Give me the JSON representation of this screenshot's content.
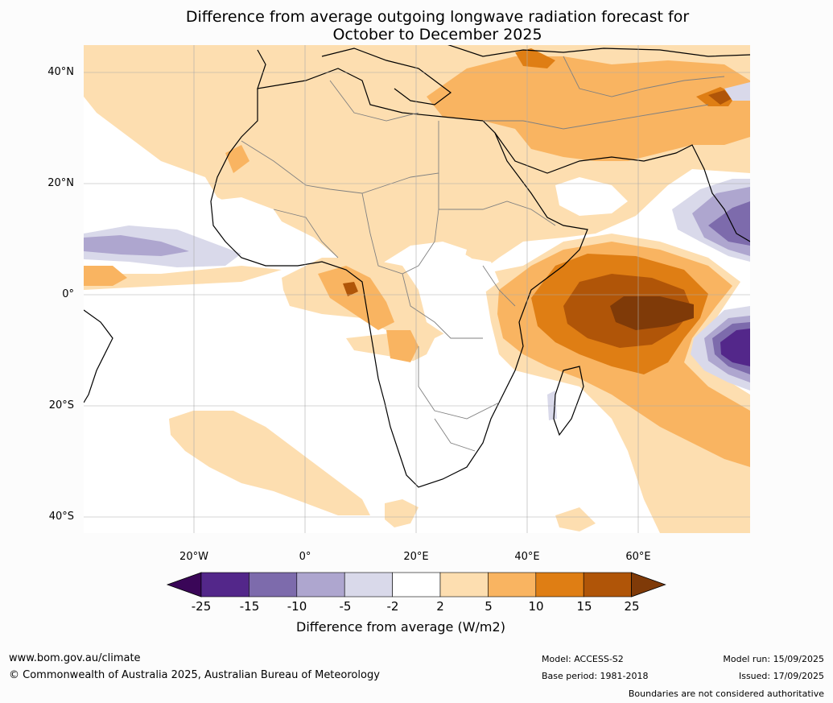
{
  "title": "Difference from average outgoing longwave radiation forecast for\nOctober to December 2025",
  "lat_labels": [
    "40°N",
    "20°N",
    "0°",
    "20°S",
    "40°S"
  ],
  "lon_labels": [
    "20°W",
    "0°",
    "20°E",
    "40°E",
    "60°E"
  ],
  "colorbar": {
    "ticks": [
      "-25",
      "-15",
      "-10",
      "-5",
      "-2",
      "2",
      "5",
      "10",
      "15",
      "25"
    ],
    "label": "Difference from average (W/m2)",
    "colors": {
      "below_-25": "#3a0658",
      "-25_to_-15": "#53278a",
      "-15_to_-10": "#7d6bac",
      "-10_to_-5": "#aea6cf",
      "-5_to_-2": "#d9d9ea",
      "-2_to_2": "#ffffff",
      "2_to_5": "#fddeb0",
      "5_to_10": "#f9b461",
      "10_to_15": "#df7e14",
      "15_to_25": "#b05508",
      "above_25": "#7f3a08"
    }
  },
  "footer": {
    "website": "www.bom.gov.au/climate",
    "copyright": "© Commonwealth of Australia 2025, Australian Bureau of Meteorology",
    "model": "Model: ACCESS-S2",
    "base_period": "Base period: 1981-2018",
    "model_run": "Model run: 15/09/2025",
    "issued": "Issued: 17/09/2025",
    "disclaimer": "Boundaries are not considered authoritative"
  }
}
